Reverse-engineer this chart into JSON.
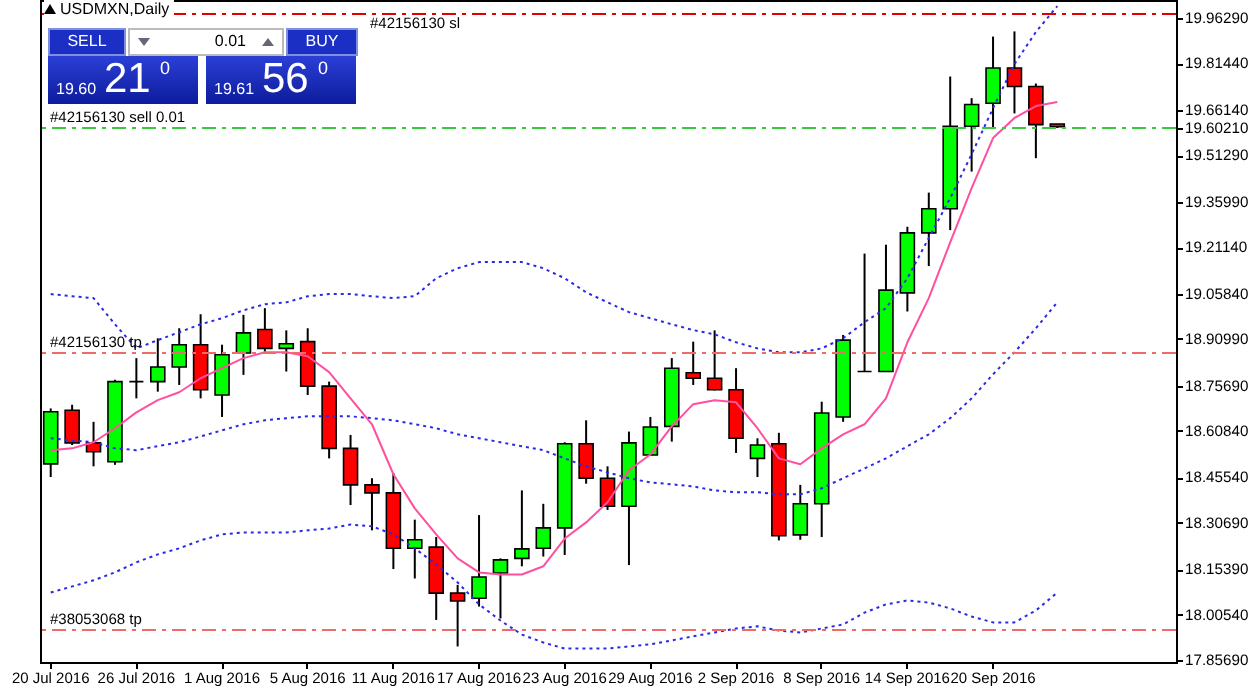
{
  "chart_data": {
    "type": "candlestick",
    "title": "USDMXN,Daily",
    "categories": [
      "20 Jul 2016",
      null,
      null,
      null,
      "26 Jul 2016",
      null,
      null,
      null,
      "1 Aug 2016",
      null,
      null,
      null,
      "5 Aug 2016",
      null,
      null,
      null,
      "11 Aug 2016",
      null,
      null,
      null,
      "17 Aug 2016",
      null,
      null,
      null,
      "23 Aug 2016",
      null,
      null,
      null,
      "29 Aug 2016",
      null,
      null,
      null,
      "2 Sep 2016",
      null,
      null,
      null,
      "8 Sep 2016",
      null,
      null,
      null,
      "14 Sep 2016",
      null,
      null,
      null,
      "20 Sep 2016",
      null,
      null,
      null
    ],
    "ohlc": [
      [
        18.5,
        18.682,
        18.457,
        18.671
      ],
      [
        18.676,
        18.694,
        18.562,
        18.569
      ],
      [
        18.569,
        18.638,
        18.492,
        18.54
      ],
      [
        18.507,
        18.776,
        18.497,
        18.77
      ],
      [
        18.77,
        18.847,
        18.715,
        18.77
      ],
      [
        18.77,
        18.912,
        18.737,
        18.818
      ],
      [
        18.818,
        18.945,
        18.759,
        18.891
      ],
      [
        18.891,
        18.991,
        18.715,
        18.743
      ],
      [
        18.726,
        18.891,
        18.654,
        18.858
      ],
      [
        18.864,
        18.989,
        18.792,
        18.93
      ],
      [
        18.941,
        19.011,
        18.868,
        18.879
      ],
      [
        18.879,
        18.938,
        18.803,
        18.894
      ],
      [
        18.901,
        18.945,
        18.726,
        18.755
      ],
      [
        18.755,
        18.77,
        18.518,
        18.551
      ],
      [
        18.551,
        18.595,
        18.365,
        18.431
      ],
      [
        18.431,
        18.453,
        18.282,
        18.405
      ],
      [
        18.405,
        18.47,
        18.155,
        18.223
      ],
      [
        18.223,
        18.317,
        18.124,
        18.251
      ],
      [
        18.227,
        18.26,
        17.988,
        18.076
      ],
      [
        18.076,
        18.103,
        17.901,
        18.05
      ],
      [
        18.059,
        18.332,
        18.032,
        18.129
      ],
      [
        18.142,
        18.19,
        17.993,
        18.185
      ],
      [
        18.19,
        18.413,
        18.164,
        18.221
      ],
      [
        18.223,
        18.369,
        18.196,
        18.29
      ],
      [
        18.29,
        18.571,
        18.201,
        18.566
      ],
      [
        18.566,
        18.643,
        18.435,
        18.453
      ],
      [
        18.453,
        18.492,
        18.349,
        18.361
      ],
      [
        18.361,
        18.606,
        18.168,
        18.569
      ],
      [
        18.529,
        18.654,
        18.528,
        18.621
      ],
      [
        18.623,
        18.847,
        18.573,
        18.814
      ],
      [
        18.799,
        18.901,
        18.759,
        18.781
      ],
      [
        18.781,
        18.938,
        18.741,
        18.743
      ],
      [
        18.743,
        18.814,
        18.536,
        18.584
      ],
      [
        18.518,
        18.584,
        18.457,
        18.562
      ],
      [
        18.566,
        18.602,
        18.249,
        18.264
      ],
      [
        18.267,
        18.431,
        18.251,
        18.369
      ],
      [
        18.369,
        18.704,
        18.26,
        18.667
      ],
      [
        18.654,
        18.923,
        18.638,
        18.906
      ],
      [
        18.803,
        19.19,
        18.803,
        18.803
      ],
      [
        18.803,
        19.219,
        18.803,
        19.07
      ],
      [
        19.061,
        19.278,
        19.0,
        19.258
      ],
      [
        19.258,
        19.39,
        19.149,
        19.337
      ],
      [
        19.337,
        19.771,
        19.267,
        19.608
      ],
      [
        19.608,
        19.7,
        19.459,
        19.679
      ],
      [
        19.683,
        19.902,
        19.6,
        19.799
      ],
      [
        19.799,
        19.919,
        19.65,
        19.738
      ],
      [
        19.738,
        19.748,
        19.503,
        19.613
      ],
      [
        19.615,
        19.615,
        19.602,
        19.606
      ]
    ],
    "colors": [
      "#00ff00",
      "#ff0000",
      "#ff0000",
      "#00ff00",
      "#000000",
      "#00ff00",
      "#00ff00",
      "#ff0000",
      "#00ff00",
      "#00ff00",
      "#ff0000",
      "#00ff00",
      "#ff0000",
      "#ff0000",
      "#ff0000",
      "#ff0000",
      "#ff0000",
      "#00ff00",
      "#ff0000",
      "#ff0000",
      "#00ff00",
      "#00ff00",
      "#00ff00",
      "#00ff00",
      "#00ff00",
      "#ff0000",
      "#ff0000",
      "#00ff00",
      "#00ff00",
      "#00ff00",
      "#ff0000",
      "#ff0000",
      "#ff0000",
      "#00ff00",
      "#ff0000",
      "#00ff00",
      "#00ff00",
      "#00ff00",
      "#000000",
      "#00ff00",
      "#00ff00",
      "#00ff00",
      "#00ff00",
      "#00ff00",
      "#00ff00",
      "#ff0000",
      "#ff0000",
      "#ff0000"
    ],
    "series": [
      {
        "type": "line",
        "color": "#2a2ae6",
        "line_style": "dotted",
        "values": [
          19.057,
          19.05,
          19.044,
          18.958,
          18.879,
          18.906,
          18.932,
          18.958,
          18.978,
          19.004,
          19.024,
          19.03,
          19.05,
          19.057,
          19.057,
          19.05,
          19.044,
          19.05,
          19.109,
          19.142,
          19.162,
          19.162,
          19.162,
          19.142,
          19.109,
          19.063,
          19.03,
          18.998,
          18.978,
          18.958,
          18.939,
          18.925,
          18.899,
          18.879,
          18.866,
          18.866,
          18.879,
          18.912,
          18.965,
          19.011,
          19.109,
          19.241,
          19.372,
          19.516,
          19.667,
          19.812,
          19.917,
          20.002
        ]
      },
      {
        "type": "line",
        "color": "#2a2ae6",
        "line_style": "dotted",
        "values": [
          18.584,
          18.577,
          18.571,
          18.551,
          18.545,
          18.558,
          18.571,
          18.59,
          18.61,
          18.63,
          18.643,
          18.65,
          18.656,
          18.656,
          18.656,
          18.65,
          18.643,
          18.63,
          18.617,
          18.597,
          18.584,
          18.571,
          18.558,
          18.545,
          18.518,
          18.492,
          18.472,
          18.453,
          18.439,
          18.433,
          18.426,
          18.413,
          18.407,
          18.407,
          18.4,
          18.4,
          18.42,
          18.453,
          18.485,
          18.518,
          18.558,
          18.597,
          18.65,
          18.715,
          18.794,
          18.866,
          18.945,
          19.03
        ]
      },
      {
        "type": "line",
        "color": "#2a2ae6",
        "line_style": "dotted",
        "values": [
          18.078,
          18.098,
          18.118,
          18.144,
          18.177,
          18.203,
          18.223,
          18.249,
          18.269,
          18.275,
          18.275,
          18.275,
          18.282,
          18.288,
          18.301,
          18.295,
          18.269,
          18.223,
          18.17,
          18.111,
          18.039,
          17.986,
          17.94,
          17.914,
          17.894,
          17.894,
          17.894,
          17.901,
          17.908,
          17.921,
          17.934,
          17.947,
          17.96,
          17.967,
          17.953,
          17.947,
          17.96,
          17.973,
          18.012,
          18.039,
          18.052,
          18.045,
          18.026,
          17.999,
          17.98,
          17.98,
          18.019,
          18.078
        ]
      },
      {
        "type": "line",
        "color": "#ff4f9e",
        "line_style": "solid",
        "values": [
          18.545,
          18.551,
          18.571,
          18.617,
          18.669,
          18.709,
          18.735,
          18.781,
          18.814,
          18.847,
          18.866,
          18.866,
          18.853,
          18.801,
          18.715,
          18.63,
          18.466,
          18.354,
          18.269,
          18.19,
          18.144,
          18.137,
          18.137,
          18.164,
          18.255,
          18.308,
          18.374,
          18.479,
          18.531,
          18.623,
          18.696,
          18.709,
          18.702,
          18.617,
          18.518,
          18.499,
          18.551,
          18.597,
          18.63,
          18.715,
          18.899,
          19.044,
          19.227,
          19.405,
          19.569,
          19.635,
          19.674,
          19.687
        ]
      }
    ],
    "ylim": [
      17.85,
      20.022
    ],
    "yticks": [
      {
        "value": 19.9629,
        "label": "19.96290"
      },
      {
        "value": 19.8144,
        "label": "19.81440"
      },
      {
        "value": 19.6614,
        "label": "19.66140"
      },
      {
        "value": 19.6021,
        "label": "19.60210"
      },
      {
        "value": 19.5129,
        "label": "19.51290"
      },
      {
        "value": 19.3599,
        "label": "19.35990"
      },
      {
        "value": 19.2114,
        "label": "19.21140"
      },
      {
        "value": 19.0584,
        "label": "19.05840"
      },
      {
        "value": 18.9099,
        "label": "18.90990"
      },
      {
        "value": 18.7569,
        "label": "18.75690"
      },
      {
        "value": 18.6084,
        "label": "18.60840"
      },
      {
        "value": 18.4554,
        "label": "18.45540"
      },
      {
        "value": 18.3069,
        "label": "18.30690"
      },
      {
        "value": 18.1539,
        "label": "18.15390"
      },
      {
        "value": 18.0054,
        "label": "18.00540"
      },
      {
        "value": 17.8569,
        "label": "17.85690"
      }
    ],
    "ref_lines": [
      {
        "axis": "y",
        "value": 19.976,
        "label": "#42156130 sl",
        "color": "#e00000",
        "line_style": "dashed"
      },
      {
        "axis": "y",
        "value": 19.6021,
        "label": "#42156130 sell 0.01",
        "color": "#3cc83c",
        "line_style": "dashed"
      },
      {
        "axis": "y",
        "value": 18.864,
        "label": "#42156130 tp",
        "color": "#f06a6a",
        "line_style": "dashed"
      },
      {
        "axis": "y",
        "value": 17.955,
        "label": "#38053068 tp",
        "color": "#f06a6a",
        "line_style": "dashed"
      }
    ],
    "annotations": [
      "SELL",
      "0.01",
      "BUY",
      "19.60",
      "21",
      "0",
      "19.61",
      "56",
      "0"
    ]
  }
}
